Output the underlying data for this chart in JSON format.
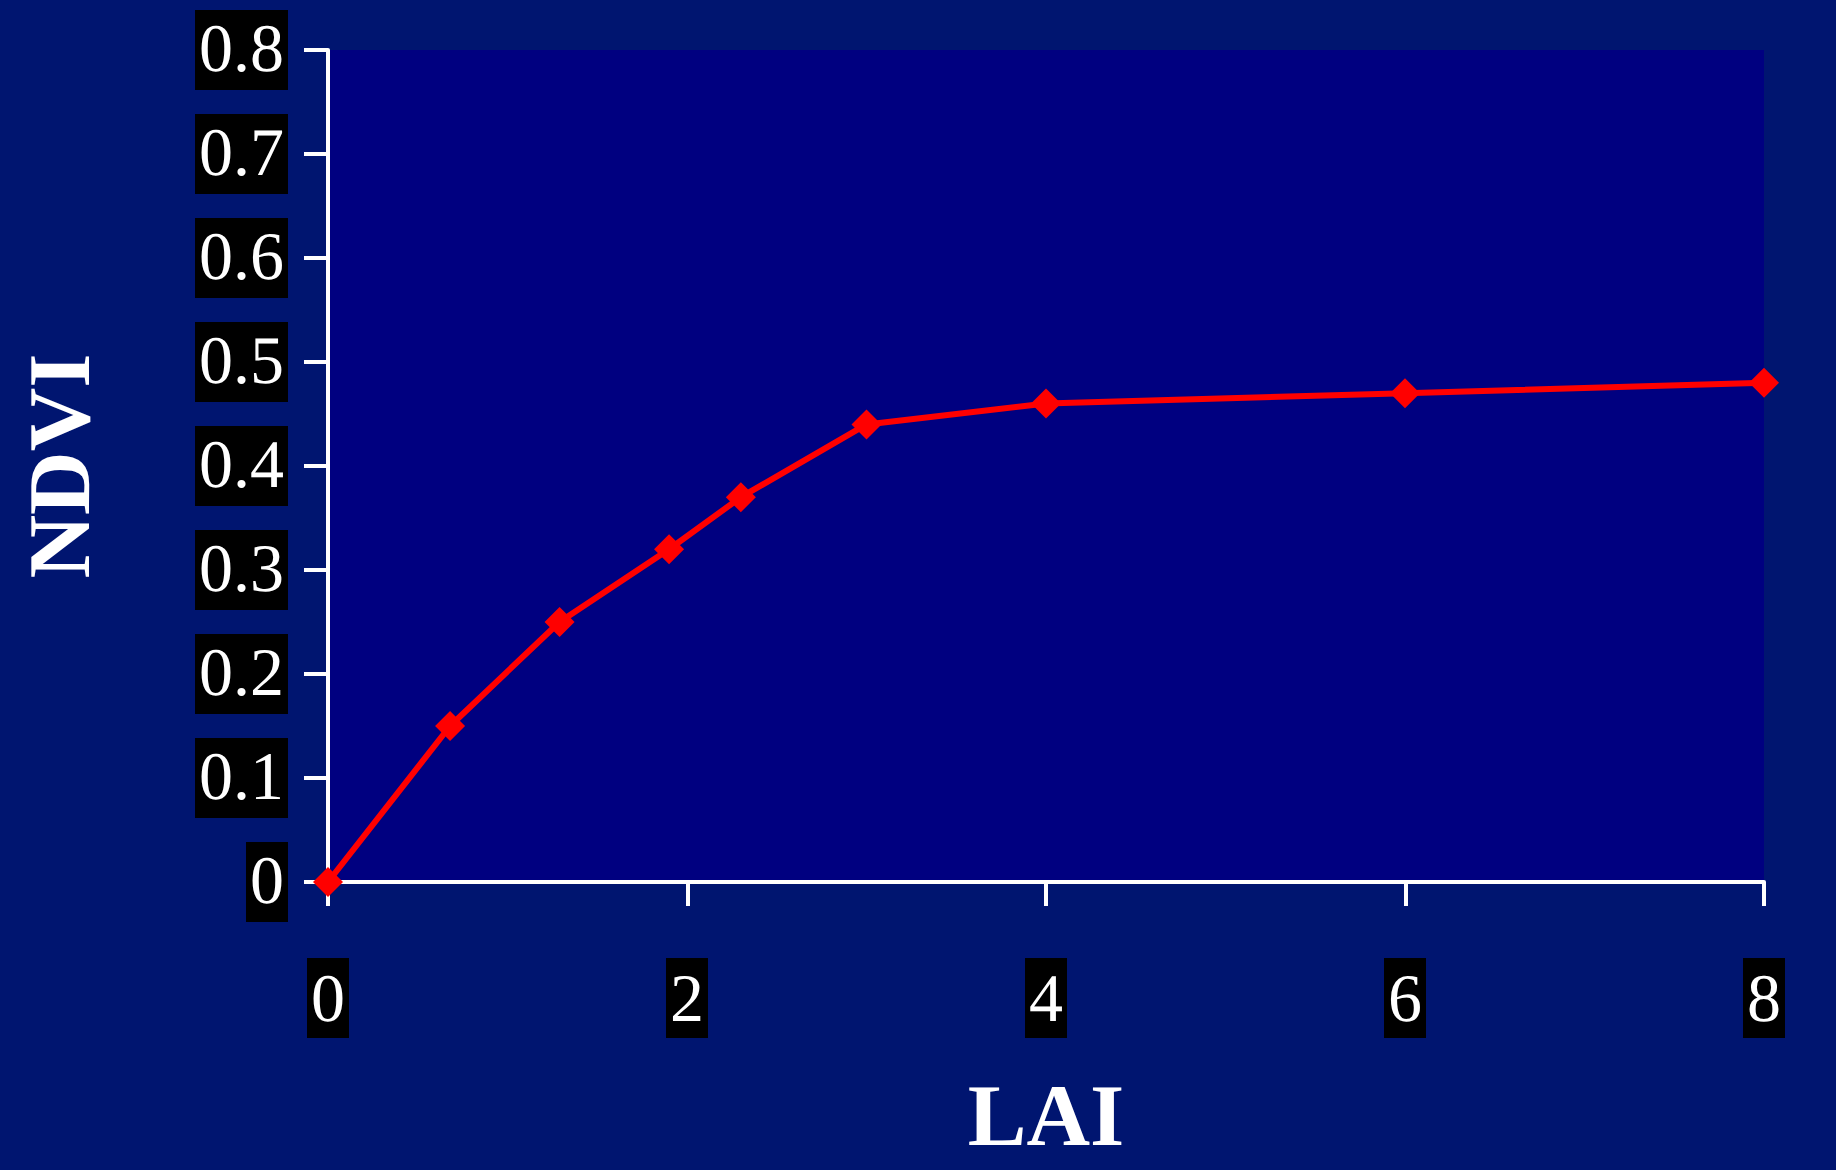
{
  "chart_data": {
    "type": "line",
    "xlabel": "LAI",
    "ylabel": "NDVI",
    "x": [
      0,
      0.68,
      1.29,
      1.9,
      2.3,
      3.0,
      4,
      6,
      8
    ],
    "series": [
      {
        "color": "#ff0000",
        "values": [
          0,
          0.15,
          0.25,
          0.32,
          0.37,
          0.44,
          0.46,
          0.47,
          0.48
        ]
      }
    ],
    "xlim": [
      0,
      8
    ],
    "xticks": [
      0,
      2,
      4,
      6,
      8
    ],
    "ylim": [
      0,
      0.8
    ],
    "yticks": [
      0,
      0.1,
      0.2,
      0.3,
      0.4,
      0.5,
      0.6,
      0.7,
      0.8
    ],
    "marker": "diamond",
    "line_style": "solid"
  }
}
